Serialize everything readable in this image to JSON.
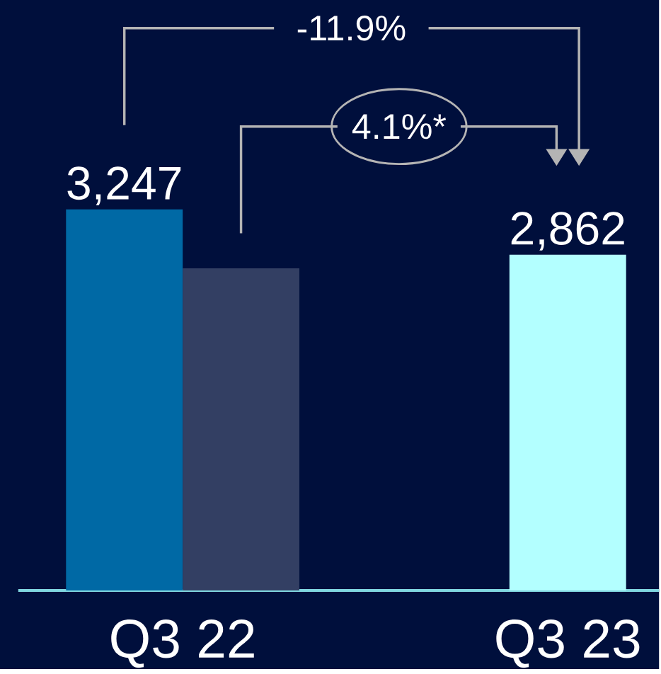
{
  "chart_data": {
    "type": "bar",
    "categories": [
      "Q3 22",
      "Q3 23"
    ],
    "series": [
      {
        "color": "#0069a5",
        "values": [
          3247,
          null
        ],
        "value_labels": [
          "3,247",
          null
        ]
      },
      {
        "color": "#333f63",
        "values": [
          2745,
          null
        ]
      },
      {
        "color": "#b3ffff",
        "values": [
          null,
          2862
        ],
        "value_labels": [
          null,
          "2,862"
        ]
      }
    ],
    "annotations": [
      "-11.9%",
      "4.1%*"
    ]
  }
}
